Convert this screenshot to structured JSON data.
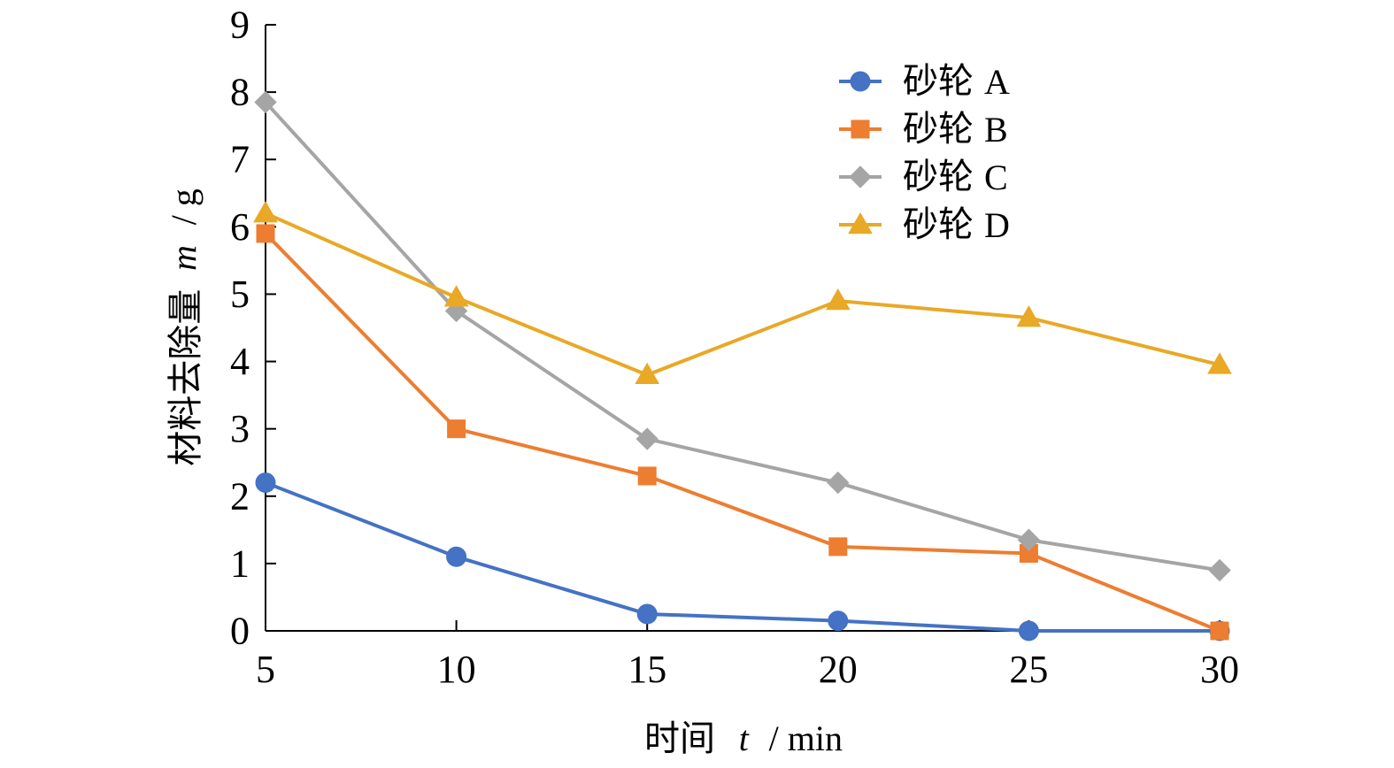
{
  "chart_data": {
    "type": "line",
    "title": "",
    "xlabel": {
      "text": "时间",
      "var": "t",
      "unit": "/ min"
    },
    "ylabel": {
      "text": "材料去除量",
      "var": "m",
      "unit": "/ g"
    },
    "x": [
      5,
      10,
      15,
      20,
      25,
      30
    ],
    "x_ticks": [
      "5",
      "10",
      "15",
      "20",
      "25",
      "30"
    ],
    "y_ticks": [
      "0",
      "1",
      "2",
      "3",
      "4",
      "5",
      "6",
      "7",
      "8",
      "9"
    ],
    "xlim": [
      5,
      30
    ],
    "ylim": [
      0,
      9
    ],
    "grid": false,
    "legend_position": "top-right",
    "series": [
      {
        "name": "砂轮 A",
        "label_main": "砂轮",
        "label_suffix": "A",
        "color": "#4472c4",
        "marker": "circle",
        "values": [
          2.2,
          1.1,
          0.25,
          0.15,
          0.0,
          0.0
        ]
      },
      {
        "name": "砂轮 B",
        "label_main": "砂轮",
        "label_suffix": "B",
        "color": "#ed7d31",
        "marker": "square",
        "values": [
          5.9,
          3.0,
          2.3,
          1.25,
          1.15,
          0.0
        ]
      },
      {
        "name": "砂轮 C",
        "label_main": "砂轮",
        "label_suffix": "C",
        "color": "#a5a5a5",
        "marker": "diamond",
        "values": [
          7.85,
          4.75,
          2.85,
          2.2,
          1.35,
          0.9
        ]
      },
      {
        "name": "砂轮 D",
        "label_main": "砂轮",
        "label_suffix": "D",
        "color": "#e9a825",
        "marker": "triangle",
        "values": [
          6.2,
          4.95,
          3.8,
          4.9,
          4.65,
          3.95
        ]
      }
    ]
  }
}
